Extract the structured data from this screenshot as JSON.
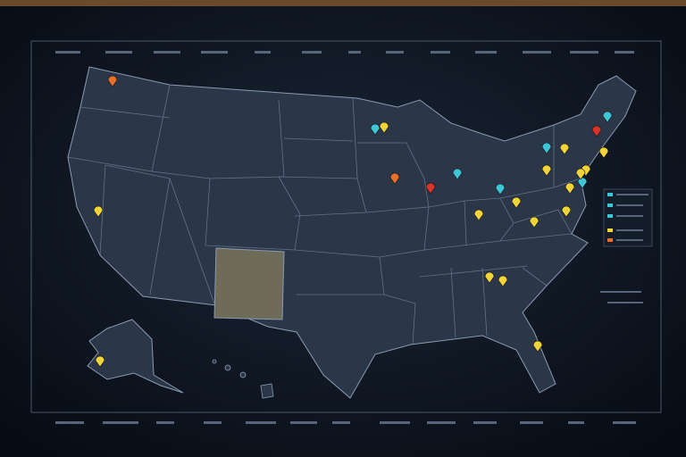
{
  "map": {
    "pins": [
      {
        "color": "#e8702a"
      },
      {
        "color": "#f2d43a"
      },
      {
        "color": "#f2d43a"
      },
      {
        "color": "#f2d43a"
      },
      {
        "color": "#e8702a"
      },
      {
        "color": "#d8342a"
      },
      {
        "color": "#3ec6d8"
      },
      {
        "color": "#3ec6d8"
      },
      {
        "color": "#f2d43a"
      },
      {
        "color": "#f2d43a"
      },
      {
        "color": "#f2d43a"
      },
      {
        "color": "#3ec6d8"
      },
      {
        "color": "#f2d43a"
      },
      {
        "color": "#f2d43a"
      },
      {
        "color": "#f2d43a"
      },
      {
        "color": "#3ec6d8"
      },
      {
        "color": "#f2d43a"
      },
      {
        "color": "#d8342a"
      },
      {
        "color": "#3ec6d8"
      },
      {
        "color": "#f2d43a"
      },
      {
        "color": "#f2d43a"
      },
      {
        "color": "#3ec6d8"
      },
      {
        "color": "#f2d43a"
      },
      {
        "color": "#f2d43a"
      },
      {
        "color": "#f2d43a"
      },
      {
        "color": "#f2d43a"
      }
    ]
  }
}
